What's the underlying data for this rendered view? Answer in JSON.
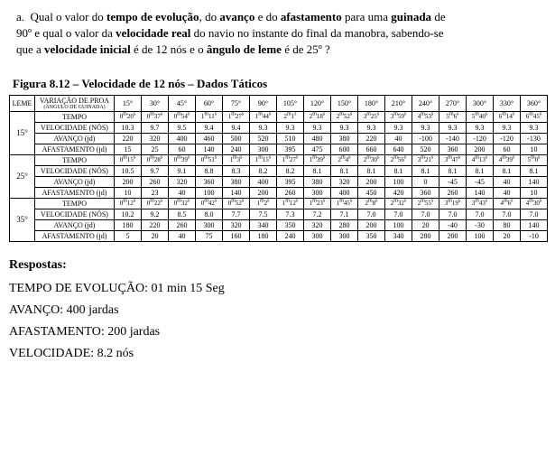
{
  "question": {
    "prefix": "a.",
    "line1_a": "Qual o valor do ",
    "tempo_ev": "tempo de evolução",
    "line1_b": ", do ",
    "avanco": "avanço",
    "line1_c": " e do ",
    "afast": "afastamento",
    "line1_d": " para uma ",
    "guinada": "guinada",
    "line1_e": " de",
    "line2_a": "90º e qual o valor da ",
    "vreal": "velocidade real",
    "line2_b": " do navio no instante do final da manobra, sabendo-se",
    "line3_a": "que a ",
    "vinit": "velocidade inicial",
    "line3_b": " é de 12 nós e o ",
    "leme": "ângulo de leme",
    "line3_c": " é de 25º ?"
  },
  "fig_title": "Figura 8.12 – Velocidade de 12 nós – Dados Táticos",
  "headers": {
    "leme": "LEME",
    "variacao_l1": "VARIAÇÃO DE PROA",
    "variacao_l2": "(ÂNGULO DE GUINADA)",
    "angles": [
      "15°",
      "30°",
      "45°",
      "60°",
      "75°",
      "90°",
      "105°",
      "120°",
      "150°",
      "180°",
      "210°",
      "240°",
      "270°",
      "300°",
      "330°",
      "360°"
    ]
  },
  "row_labels": {
    "tempo": "TEMPO",
    "vel": "VELOCIDADE (NÓS)",
    "av": "AVANÇO (jd)",
    "af": "AFASTAMENTO (jd)"
  },
  "groups": [
    {
      "leme": "15°",
      "tempo_pairs": [
        [
          0,
          20
        ],
        [
          0,
          37
        ],
        [
          0,
          54
        ],
        [
          1,
          11
        ],
        [
          1,
          27
        ],
        [
          1,
          44
        ],
        [
          2,
          1
        ],
        [
          2,
          18
        ],
        [
          2,
          52
        ],
        [
          3,
          25
        ],
        [
          3,
          59
        ],
        [
          4,
          53
        ],
        [
          5,
          6
        ],
        [
          5,
          40
        ],
        [
          6,
          14
        ],
        [
          6,
          45
        ]
      ],
      "vel": [
        "10.3",
        "9.7",
        "9.5",
        "9.4",
        "9.4",
        "9.3",
        "9.3",
        "9.3",
        "9.3",
        "9.3",
        "9.3",
        "9.3",
        "9.3",
        "9.3",
        "9.3",
        "9.3"
      ],
      "av": [
        "220",
        "320",
        "400",
        "460",
        "500",
        "520",
        "510",
        "480",
        "380",
        "220",
        "40",
        "-100",
        "-140",
        "-120",
        "-120",
        "-130"
      ],
      "af": [
        "15",
        "25",
        "60",
        "140",
        "240",
        "300",
        "395",
        "475",
        "600",
        "660",
        "640",
        "520",
        "360",
        "200",
        "60",
        "10"
      ]
    },
    {
      "leme": "25°",
      "tempo_pairs": [
        [
          0,
          15
        ],
        [
          0,
          28
        ],
        [
          0,
          39
        ],
        [
          0,
          51
        ],
        [
          1,
          3
        ],
        [
          1,
          15
        ],
        [
          1,
          27
        ],
        [
          1,
          39
        ],
        [
          2,
          4
        ],
        [
          2,
          30
        ],
        [
          2,
          56
        ],
        [
          3,
          21
        ],
        [
          3,
          47
        ],
        [
          4,
          13
        ],
        [
          4,
          39
        ],
        [
          5,
          0
        ]
      ],
      "vel": [
        "10.5",
        "9.7",
        "9.1",
        "8.8",
        "8.3",
        "8.2",
        "8.2",
        "8.1",
        "8.1",
        "8.1",
        "8.1",
        "8.1",
        "8.1",
        "8.1",
        "8.1",
        "8.1"
      ],
      "av": [
        "200",
        "260",
        "320",
        "360",
        "380",
        "400",
        "395",
        "380",
        "320",
        "200",
        "100",
        "0",
        "-45",
        "-45",
        "40",
        "140"
      ],
      "af": [
        "10",
        "23",
        "40",
        "100",
        "140",
        "200",
        "260",
        "300",
        "400",
        "450",
        "420",
        "360",
        "260",
        "140",
        "40",
        "10"
      ]
    },
    {
      "leme": "35°",
      "tempo_pairs": [
        [
          0,
          12
        ],
        [
          0,
          22
        ],
        [
          0,
          32
        ],
        [
          0,
          42
        ],
        [
          0,
          52
        ],
        [
          1,
          2
        ],
        [
          1,
          12
        ],
        [
          1,
          23
        ],
        [
          1,
          45
        ],
        [
          2,
          8
        ],
        [
          2,
          32
        ],
        [
          2,
          55
        ],
        [
          3,
          19
        ],
        [
          3,
          43
        ],
        [
          4,
          6
        ],
        [
          4,
          30
        ]
      ],
      "vel": [
        "10.2",
        "9.2",
        "8.5",
        "8.0",
        "7.7",
        "7.5",
        "7.3",
        "7.2",
        "7.1",
        "7.0",
        "7.0",
        "7.0",
        "7.0",
        "7.0",
        "7.0",
        "7.0"
      ],
      "av": [
        "180",
        "220",
        "260",
        "300",
        "320",
        "340",
        "350",
        "320",
        "280",
        "200",
        "100",
        "20",
        "-40",
        "-30",
        "80",
        "140"
      ],
      "af": [
        "5",
        "20",
        "40",
        "75",
        "160",
        "180",
        "240",
        "300",
        "300",
        "350",
        "340",
        "280",
        "200",
        "100",
        "20",
        "-10"
      ]
    }
  ],
  "answers": {
    "hdr": "Respostas:",
    "l1": "TEMPO DE EVOLUÇÃO: 01 min 15 Seg",
    "l2": "AVANÇO: 400 jardas",
    "l3": "AFASTAMENTO: 200 jardas",
    "l4": "VELOCIDADE: 8.2 nós"
  }
}
